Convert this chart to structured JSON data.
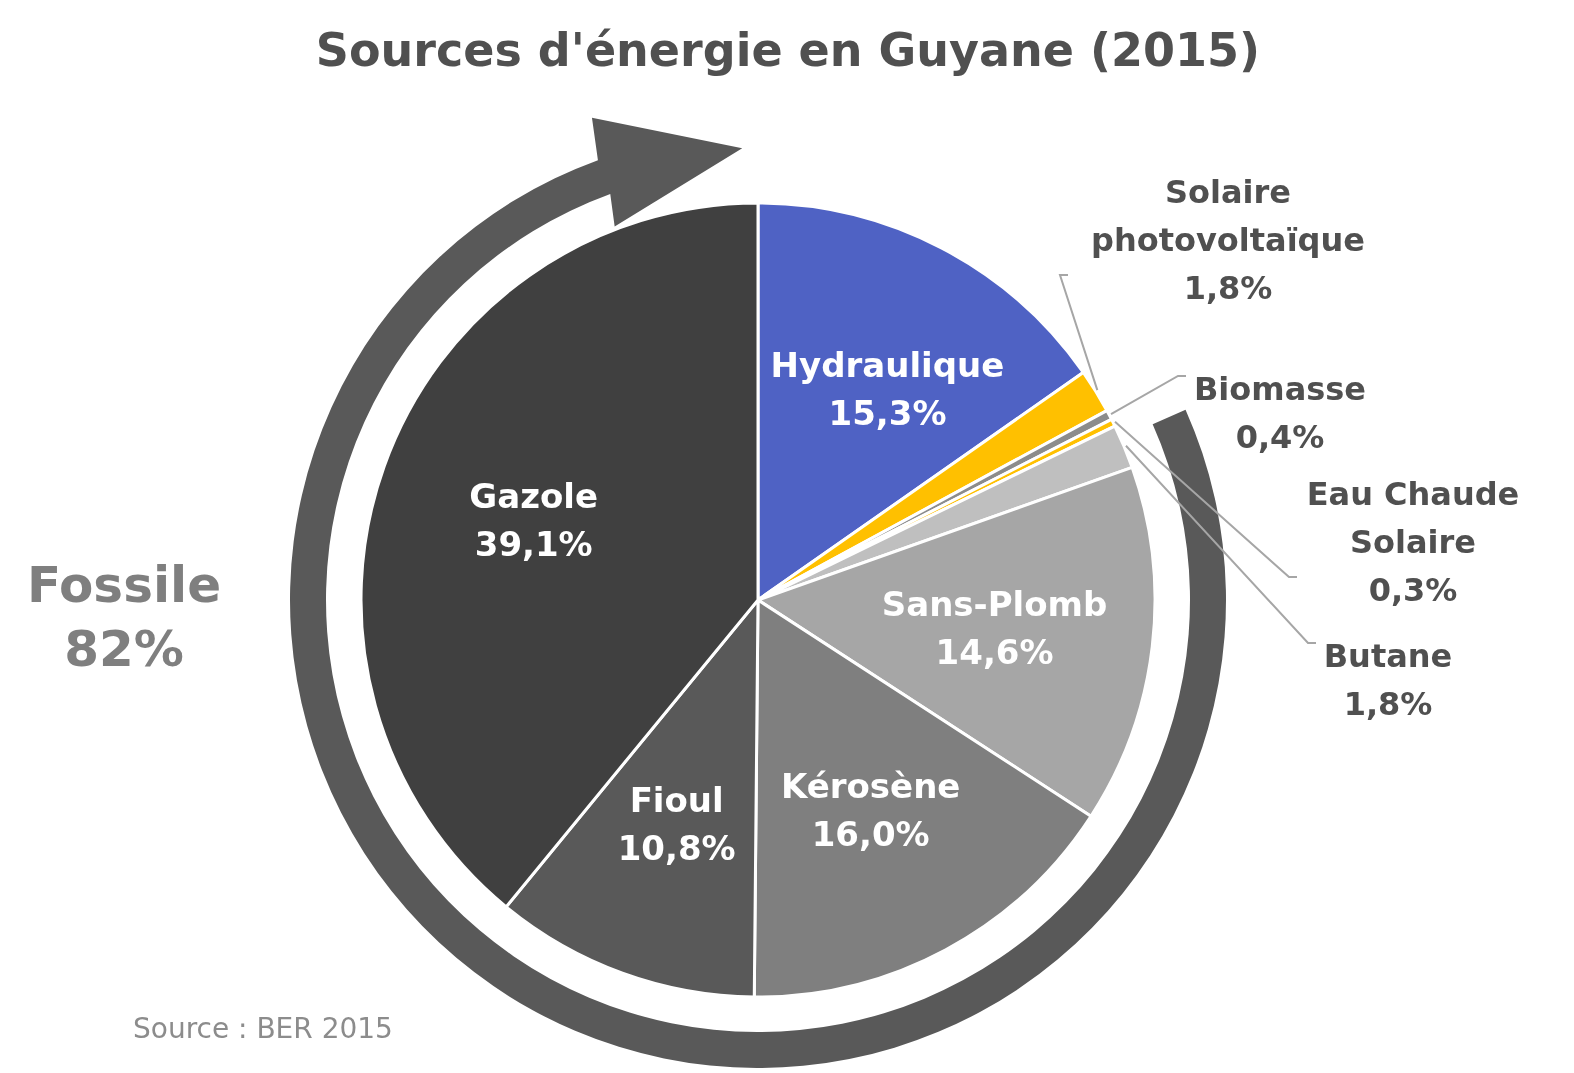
{
  "chart_data": {
    "type": "pie",
    "title": "Sources d'énergie en Guyane (2015)",
    "categories": [
      "Hydraulique",
      "Solaire photovoltaïque",
      "Biomasse",
      "Eau Chaude Solaire",
      "Butane",
      "Sans-Plomb",
      "Kérosène",
      "Fioul",
      "Gazole"
    ],
    "values": [
      15.3,
      1.8,
      0.4,
      0.3,
      1.8,
      14.6,
      16.0,
      10.8,
      39.1
    ],
    "value_labels": [
      "15,3%",
      "1,8%",
      "0,4%",
      "0,3%",
      "1,8%",
      "14,6%",
      "16,0%",
      "10,8%",
      "39,1%"
    ],
    "colors": [
      "#4f62c4",
      "#ffc000",
      "#8c8c8c",
      "#ffc000",
      "#bfbfbf",
      "#a6a6a6",
      "#7f7f7f",
      "#595959",
      "#404040"
    ],
    "annotations": [
      "Fossile 82%",
      "Source : BER 2015"
    ]
  }
}
